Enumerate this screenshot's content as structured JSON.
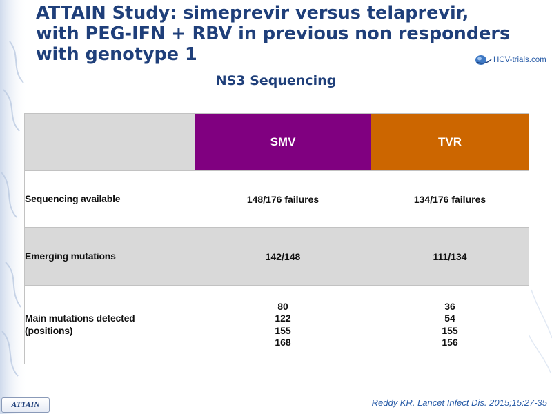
{
  "slide": {
    "title_lines": [
      "ATTAIN Study: simeprevir versus telaprevir,",
      "with PEG-IFN + RBV in previous non responders",
      "with genotype 1"
    ],
    "subtitle": "NS3 Sequencing",
    "logo_text": "HCV-trials.com",
    "badge": "ATTAIN",
    "citation": "Reddy KR. Lancet Infect Dis. 2015;15:27-35",
    "colors": {
      "title": "#1f3f7a",
      "smv": "#800080",
      "tvr": "#cc6600",
      "shaded_row": "#d9d9d9"
    }
  },
  "table": {
    "headers": [
      "",
      "SMV",
      "TVR"
    ],
    "rows": [
      {
        "label": "Sequencing available",
        "smv": "148/176 failures",
        "tvr": "134/176 failures"
      },
      {
        "label": "Emerging mutations",
        "smv": "142/148",
        "tvr": "111/134"
      },
      {
        "label_lines": [
          "Main mutations detected",
          "(positions)"
        ],
        "smv": [
          "80",
          "122",
          "155",
          "168"
        ],
        "tvr": [
          "36",
          "54",
          "155",
          "156"
        ]
      }
    ]
  }
}
